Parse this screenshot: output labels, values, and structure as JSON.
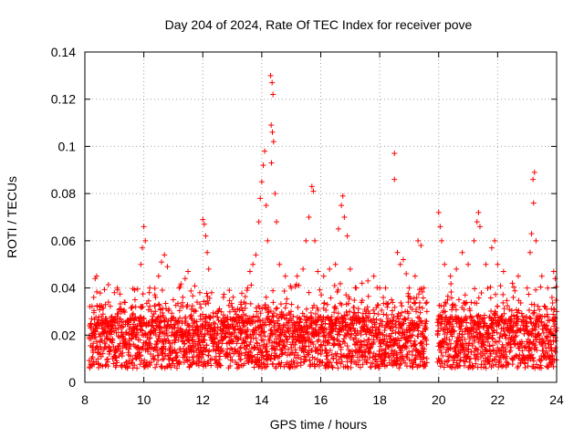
{
  "chart_data": {
    "type": "scatter",
    "title": "Day 204 of 2024, Rate Of TEC Index for receiver pove",
    "xlabel": "GPS time / hours",
    "ylabel": "ROTI / TECUs",
    "xlim": [
      8,
      24
    ],
    "ylim": [
      0,
      0.14
    ],
    "xticks": [
      8,
      10,
      12,
      14,
      16,
      18,
      20,
      22,
      24
    ],
    "xtick_labels": [
      "8",
      "10",
      "12",
      "14",
      "16",
      "18",
      "20",
      "22",
      "24"
    ],
    "yticks": [
      0,
      0.02,
      0.04,
      0.06,
      0.08,
      0.1,
      0.12,
      0.14
    ],
    "ytick_labels": [
      "0",
      "0.02",
      "0.04",
      "0.06",
      "0.08",
      "0.1",
      "0.12",
      "0.14"
    ],
    "grid": true,
    "marker": "plus",
    "color": "#ff0000",
    "data_gap": [
      19.6,
      19.95
    ],
    "series": [
      {
        "name": "ROTI",
        "points": [
          [
            8.2,
            0.025
          ],
          [
            8.3,
            0.036
          ],
          [
            8.35,
            0.044
          ],
          [
            8.4,
            0.045
          ],
          [
            8.5,
            0.032
          ],
          [
            8.7,
            0.027
          ],
          [
            8.8,
            0.034
          ],
          [
            9.0,
            0.038
          ],
          [
            9.1,
            0.04
          ],
          [
            9.3,
            0.03
          ],
          [
            9.5,
            0.026
          ],
          [
            9.7,
            0.035
          ],
          [
            9.9,
            0.05
          ],
          [
            9.95,
            0.057
          ],
          [
            10.0,
            0.066
          ],
          [
            10.05,
            0.06
          ],
          [
            10.2,
            0.04
          ],
          [
            10.4,
            0.036
          ],
          [
            10.5,
            0.045
          ],
          [
            10.6,
            0.051
          ],
          [
            10.7,
            0.054
          ],
          [
            10.8,
            0.049
          ],
          [
            11.0,
            0.035
          ],
          [
            11.2,
            0.04
          ],
          [
            11.4,
            0.044
          ],
          [
            11.5,
            0.047
          ],
          [
            11.7,
            0.03
          ],
          [
            11.9,
            0.038
          ],
          [
            12.0,
            0.069
          ],
          [
            12.05,
            0.067
          ],
          [
            12.1,
            0.062
          ],
          [
            12.15,
            0.055
          ],
          [
            12.2,
            0.048
          ],
          [
            12.3,
            0.038
          ],
          [
            12.5,
            0.03
          ],
          [
            12.7,
            0.036
          ],
          [
            12.9,
            0.039
          ],
          [
            13.1,
            0.03
          ],
          [
            13.3,
            0.034
          ],
          [
            13.5,
            0.039
          ],
          [
            13.6,
            0.047
          ],
          [
            13.7,
            0.05
          ],
          [
            13.8,
            0.054
          ],
          [
            13.9,
            0.068
          ],
          [
            13.95,
            0.078
          ],
          [
            14.0,
            0.085
          ],
          [
            14.05,
            0.092
          ],
          [
            14.1,
            0.098
          ],
          [
            14.15,
            0.075
          ],
          [
            14.2,
            0.06
          ],
          [
            14.3,
            0.13
          ],
          [
            14.35,
            0.127
          ],
          [
            14.38,
            0.122
          ],
          [
            14.32,
            0.109
          ],
          [
            14.36,
            0.106
          ],
          [
            14.4,
            0.102
          ],
          [
            14.33,
            0.093
          ],
          [
            14.45,
            0.08
          ],
          [
            14.5,
            0.068
          ],
          [
            14.6,
            0.05
          ],
          [
            14.8,
            0.045
          ],
          [
            15.0,
            0.04
          ],
          [
            15.2,
            0.045
          ],
          [
            15.4,
            0.048
          ],
          [
            15.5,
            0.06
          ],
          [
            15.6,
            0.07
          ],
          [
            15.7,
            0.083
          ],
          [
            15.75,
            0.081
          ],
          [
            15.8,
            0.06
          ],
          [
            15.9,
            0.047
          ],
          [
            16.1,
            0.045
          ],
          [
            16.3,
            0.048
          ],
          [
            16.5,
            0.05
          ],
          [
            16.6,
            0.065
          ],
          [
            16.7,
            0.075
          ],
          [
            16.75,
            0.079
          ],
          [
            16.8,
            0.07
          ],
          [
            16.9,
            0.062
          ],
          [
            17.0,
            0.048
          ],
          [
            17.2,
            0.04
          ],
          [
            17.4,
            0.042
          ],
          [
            17.6,
            0.043
          ],
          [
            17.8,
            0.045
          ],
          [
            18.0,
            0.04
          ],
          [
            18.2,
            0.04
          ],
          [
            18.4,
            0.035
          ],
          [
            18.5,
            0.097
          ],
          [
            18.5,
            0.086
          ],
          [
            18.6,
            0.055
          ],
          [
            18.7,
            0.05
          ],
          [
            18.8,
            0.052
          ],
          [
            18.9,
            0.046
          ],
          [
            19.0,
            0.04
          ],
          [
            19.2,
            0.045
          ],
          [
            19.3,
            0.06
          ],
          [
            19.4,
            0.058
          ],
          [
            19.5,
            0.04
          ],
          [
            19.6,
            0.03
          ],
          [
            20.0,
            0.072
          ],
          [
            20.05,
            0.066
          ],
          [
            20.1,
            0.06
          ],
          [
            20.2,
            0.05
          ],
          [
            20.4,
            0.045
          ],
          [
            20.6,
            0.048
          ],
          [
            20.8,
            0.055
          ],
          [
            21.0,
            0.05
          ],
          [
            21.2,
            0.06
          ],
          [
            21.3,
            0.068
          ],
          [
            21.35,
            0.072
          ],
          [
            21.4,
            0.066
          ],
          [
            21.6,
            0.05
          ],
          [
            21.8,
            0.057
          ],
          [
            21.9,
            0.06
          ],
          [
            22.0,
            0.05
          ],
          [
            22.2,
            0.047
          ],
          [
            22.5,
            0.042
          ],
          [
            22.7,
            0.045
          ],
          [
            23.0,
            0.04
          ],
          [
            23.1,
            0.055
          ],
          [
            23.15,
            0.063
          ],
          [
            23.2,
            0.086
          ],
          [
            23.25,
            0.089
          ],
          [
            23.22,
            0.076
          ],
          [
            23.3,
            0.06
          ],
          [
            23.5,
            0.045
          ],
          [
            23.7,
            0.04
          ],
          [
            23.9,
            0.047
          ],
          [
            23.95,
            0.044
          ],
          [
            24.0,
            0.03
          ]
        ]
      }
    ]
  }
}
